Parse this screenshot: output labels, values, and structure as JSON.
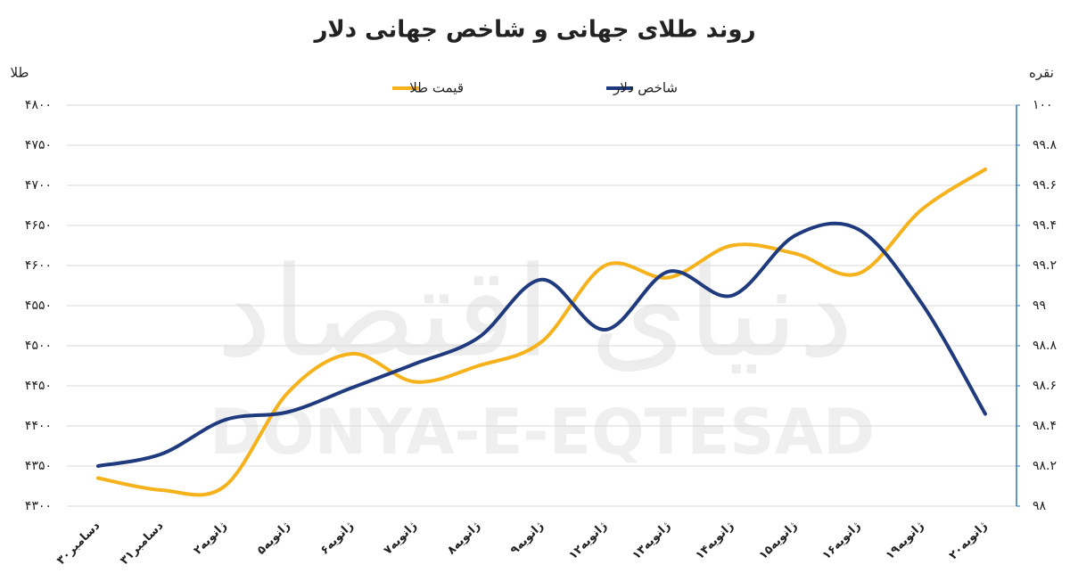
{
  "chart_data": {
    "type": "line",
    "title": "روند طلای جهانی و شاخص جهانی دلار",
    "y_label": "طلا",
    "y2_label": "نقره",
    "watermark": "DONYA-E-EQTESAD",
    "watermark_fa": "دنیای اقتصاد",
    "categories": [
      "۳۰دسامبر",
      "۳۱دسامبر",
      "۲ژانویه",
      "۵ژانویه",
      "۶ژانویه",
      "۷ژانویه",
      "۸ژانویه",
      "۹ژانویه",
      "۱۲ژانویه",
      "۱۳ژانویه",
      "۱۴ژانویه",
      "۱۵ژانویه",
      "۱۶ژانویه",
      "۱۹ژانویه",
      "۲۰ژانویه"
    ],
    "series": [
      {
        "name": "قیمت طلا",
        "color": "#f5b21c",
        "values": [
          4335,
          4320,
          4325,
          4442,
          4490,
          4455,
          4475,
          4505,
          4600,
          4585,
          4625,
          4615,
          4590,
          4670,
          4720
        ]
      },
      {
        "name": "شاخص دلار",
        "color": "#1f3a7d",
        "axis": "y2",
        "values": [
          98.2,
          98.26,
          98.43,
          98.47,
          98.59,
          98.71,
          98.84,
          99.13,
          98.88,
          99.17,
          99.05,
          99.35,
          99.38,
          99.01,
          98.46
        ]
      }
    ],
    "ylim": [
      4300,
      4800
    ],
    "yticks": [
      {
        "value": 4300,
        "label": "۴۳۰۰"
      },
      {
        "value": 4350,
        "label": "۴۳۵۰"
      },
      {
        "value": 4400,
        "label": "۴۴۰۰"
      },
      {
        "value": 4450,
        "label": "۴۴۵۰"
      },
      {
        "value": 4500,
        "label": "۴۵۰۰"
      },
      {
        "value": 4550,
        "label": "۴۵۵۰"
      },
      {
        "value": 4600,
        "label": "۴۶۰۰"
      },
      {
        "value": 4650,
        "label": "۴۶۵۰"
      },
      {
        "value": 4700,
        "label": "۴۷۰۰"
      },
      {
        "value": 4750,
        "label": "۴۷۵۰"
      },
      {
        "value": 4800,
        "label": "۴۸۰۰"
      }
    ],
    "y2lim": [
      98,
      100
    ],
    "y2ticks": [
      {
        "value": 98,
        "label": "۹۸"
      },
      {
        "value": 98.2,
        "label": "۹۸.۲"
      },
      {
        "value": 98.4,
        "label": "۹۸.۴"
      },
      {
        "value": 98.6,
        "label": "۹۸.۶"
      },
      {
        "value": 98.8,
        "label": "۹۸.۸"
      },
      {
        "value": 99,
        "label": "۹۹"
      },
      {
        "value": 99.2,
        "label": "۹۹.۲"
      },
      {
        "value": 99.4,
        "label": "۹۹.۴"
      },
      {
        "value": 99.6,
        "label": "۹۹.۶"
      },
      {
        "value": 99.8,
        "label": "۹۹.۸"
      },
      {
        "value": 100,
        "label": "۱۰۰"
      }
    ],
    "grid": true
  }
}
